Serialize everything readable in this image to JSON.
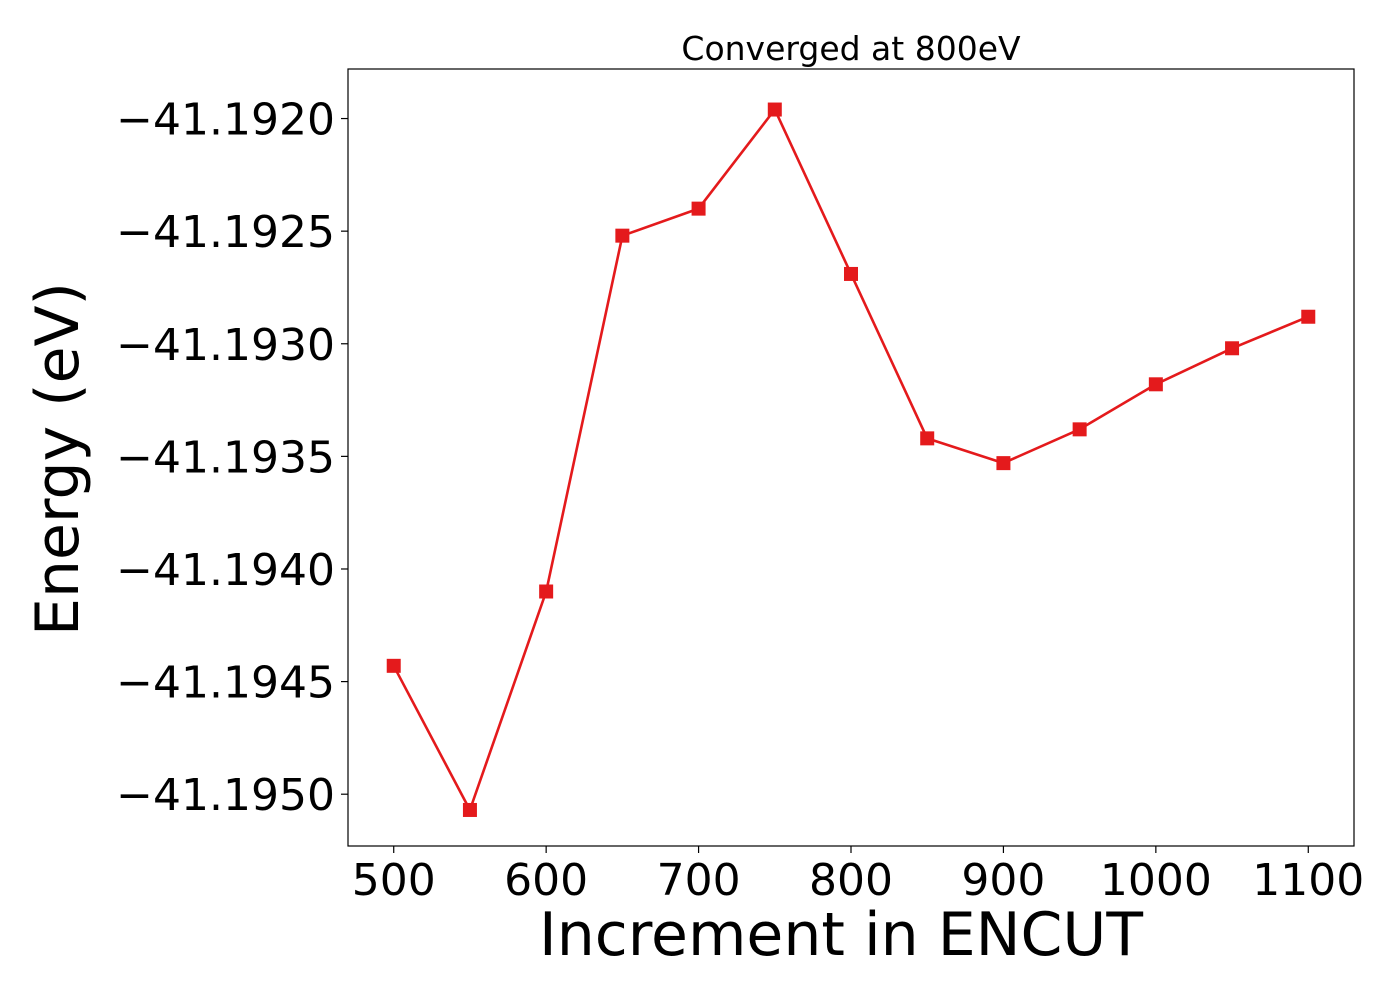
{
  "chart_data": {
    "type": "line",
    "title": "Converged at 800eV",
    "xlabel": "Increment in ENCUT",
    "ylabel": "Energy (eV)",
    "xlim": [
      470,
      1130
    ],
    "ylim": [
      -41.19523,
      -41.19178
    ],
    "x_ticks": [
      500,
      600,
      700,
      800,
      900,
      1000,
      1100
    ],
    "x_tick_labels": [
      "500",
      "600",
      "700",
      "800",
      "900",
      "1000",
      "1100"
    ],
    "y_ticks": [
      -41.192,
      -41.1925,
      -41.193,
      -41.1935,
      -41.194,
      -41.1945,
      -41.195
    ],
    "y_tick_labels": [
      "−41.1920",
      "−41.1925",
      "−41.1930",
      "−41.1935",
      "−41.1940",
      "−41.1945",
      "−41.1950"
    ],
    "grid": false,
    "series": [
      {
        "color": "#e41a1c",
        "marker": "square",
        "x": [
          500,
          550,
          600,
          650,
          700,
          750,
          800,
          850,
          900,
          950,
          1000,
          1050,
          1100
        ],
        "y": [
          -41.19443,
          -41.19507,
          -41.1941,
          -41.19252,
          -41.1924,
          -41.19196,
          -41.19269,
          -41.19342,
          -41.19353,
          -41.19338,
          -41.19318,
          -41.19302,
          -41.19288
        ]
      }
    ]
  }
}
